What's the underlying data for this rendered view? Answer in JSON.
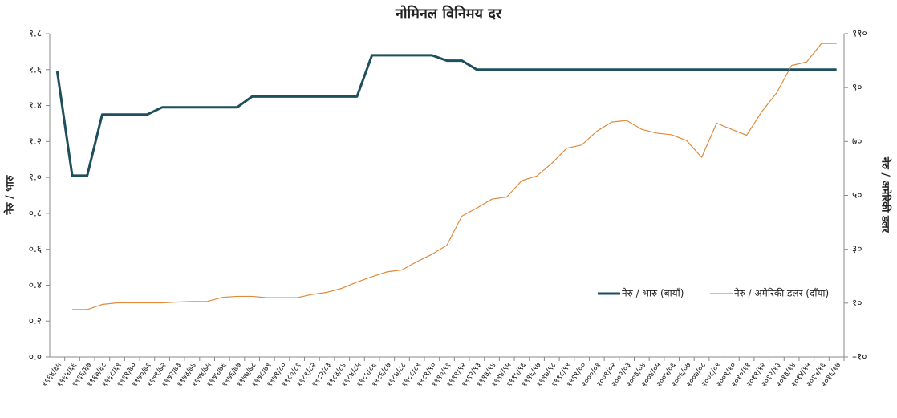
{
  "chart_data": {
    "type": "line",
    "title": "नोमिनल विनिमय दर",
    "y_label": "नेरु / भारु",
    "y2_label": "नेरु / अमेरिकी डलर",
    "categories": [
      "१९६४/६५",
      "१९६५/६६",
      "१९६६/६७",
      "१९६७/६८",
      "१९६८/६९",
      "१९६९/७०",
      "१९७०/७१",
      "१९७१/७२",
      "१९७२/७३",
      "१९७३/७४",
      "१९७४/७५",
      "१९७५/७६",
      "१९७६/७७",
      "१९७७/७८",
      "१९७८/७९",
      "१९७९/८०",
      "१९८०/८१",
      "१९८१/८२",
      "१९८२/८३",
      "१९८३/८४",
      "१९८४/८५",
      "१९८५/८६",
      "१९८६/८७",
      "१९८७/८८",
      "१९८८/८९",
      "१९८९/९०",
      "१९९०/९१",
      "१९९१/९२",
      "१९९२/९३",
      "१९९३/९४",
      "१९९४/९५",
      "१९९५/९६",
      "१९९६/९७",
      "१९९७/९८",
      "१९९८/९९",
      "१९९९/००",
      "२०००/०१",
      "२००१/०२",
      "२००२/०३",
      "२००३/०४",
      "२००४/०५",
      "२००५/०६",
      "२००६/०७",
      "२००७/०८",
      "२००८/०९",
      "२००९/१०",
      "२०१०/११",
      "२०११/१२",
      "२०१२/१३",
      "२०१३/१४",
      "२०१४/१५",
      "२०१५/१६",
      "२०१६/१७"
    ],
    "series": [
      {
        "name": "नेरु / भारु (बायाँ)",
        "color": "#1f4e5c",
        "width": 3,
        "values": [
          1.59,
          1.01,
          1.01,
          1.35,
          1.35,
          1.35,
          1.35,
          1.39,
          1.39,
          1.39,
          1.39,
          1.39,
          1.39,
          1.45,
          1.45,
          1.45,
          1.45,
          1.45,
          1.45,
          1.45,
          1.45,
          1.68,
          1.68,
          1.68,
          1.68,
          1.68,
          1.65,
          1.65,
          1.6,
          1.6,
          1.6,
          1.6,
          1.6,
          1.6,
          1.6,
          1.6,
          1.6,
          1.6,
          1.6,
          1.6,
          1.6,
          1.6,
          1.6,
          1.6,
          1.6,
          1.6,
          1.6,
          1.6,
          1.6,
          1.6,
          1.6,
          1.6,
          1.6
        ]
      },
      {
        "name": "नेरु / अमेरिकी डलर (दाँया)",
        "color": "#e08a3c",
        "width": 1.2,
        "axis": "y2",
        "values": [
          null,
          7.6,
          7.6,
          9.5,
          10.1,
          10.1,
          10.1,
          10.1,
          10.4,
          10.6,
          10.6,
          12.1,
          12.5,
          12.5,
          12.0,
          12.0,
          12.0,
          13.2,
          14.0,
          15.5,
          17.8,
          19.8,
          21.6,
          22.3,
          25.4,
          28.1,
          31.5,
          42.3,
          45.3,
          48.6,
          49.4,
          55.5,
          57.2,
          61.9,
          67.5,
          68.7,
          73.8,
          77.2,
          77.8,
          74.5,
          73.1,
          72.5,
          70.3,
          64.1,
          76.8,
          74.5,
          72.3,
          81.0,
          88.0,
          98.2,
          99.5,
          106.4,
          106.4
        ]
      }
    ],
    "ylim": [
      0,
      1.8
    ],
    "yticks": [
      {
        "value": 0,
        "label": "०.०"
      },
      {
        "value": 0.2,
        "label": "०.२"
      },
      {
        "value": 0.4,
        "label": "०.४"
      },
      {
        "value": 0.6,
        "label": "०.६"
      },
      {
        "value": 0.8,
        "label": "०.८"
      },
      {
        "value": 1.0,
        "label": "१.०"
      },
      {
        "value": 1.2,
        "label": "१.२"
      },
      {
        "value": 1.4,
        "label": "१.४"
      },
      {
        "value": 1.6,
        "label": "१.६"
      },
      {
        "value": 1.8,
        "label": "१.८"
      }
    ],
    "y2lim": [
      -10,
      110
    ],
    "y2ticks": [
      {
        "value": -10,
        "label": "–१०"
      },
      {
        "value": 10,
        "label": "१०"
      },
      {
        "value": 30,
        "label": "३०"
      },
      {
        "value": 50,
        "label": "५०"
      },
      {
        "value": 70,
        "label": "७०"
      },
      {
        "value": 90,
        "label": "९०"
      },
      {
        "value": 110,
        "label": "११०"
      }
    ],
    "legend": "right"
  }
}
